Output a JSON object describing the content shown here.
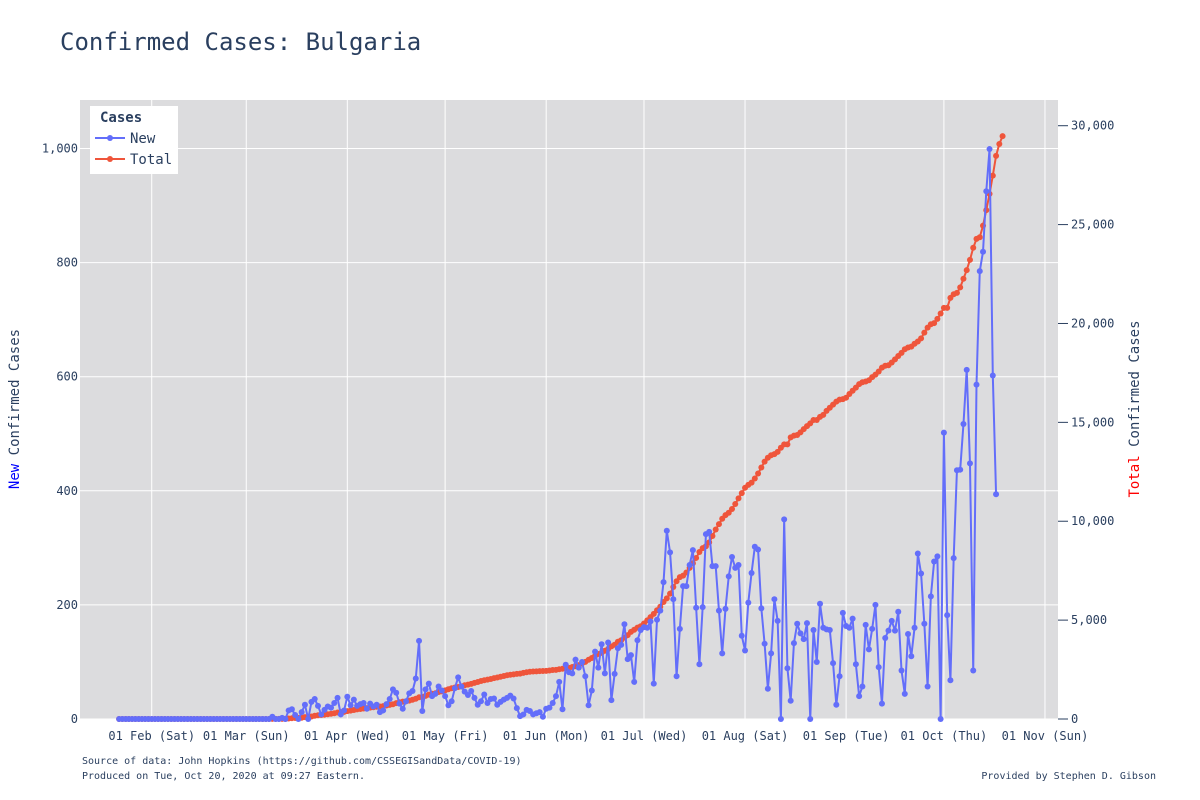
{
  "title": "Confirmed Cases: Bulgaria",
  "footer": {
    "source": "Source of data: John Hopkins (https://github.com/CSSEGISandData/COVID-19)",
    "produced": "Produced on Tue, Oct 20, 2020 at 09:27 Eastern.",
    "credit": "Provided by Stephen D. Gibson"
  },
  "colors": {
    "new": "#636efa",
    "total": "#ef553b",
    "plot_bg": "#dcdcde",
    "grid": "#ffffff",
    "text": "#2a3f5f"
  },
  "chart_data": {
    "type": "line",
    "title": "Confirmed Cases: Bulgaria",
    "legend": {
      "title": "Cases",
      "position": "top-left",
      "entries": [
        "New",
        "Total"
      ]
    },
    "x_axis": {
      "type": "date",
      "range": [
        "2020-01-10",
        "2020-11-05"
      ],
      "ticks": [
        {
          "date": "2020-02-01",
          "label": "01 Feb (Sat)"
        },
        {
          "date": "2020-03-01",
          "label": "01 Mar (Sun)"
        },
        {
          "date": "2020-04-01",
          "label": "01 Apr (Wed)"
        },
        {
          "date": "2020-05-01",
          "label": "01 May (Fri)"
        },
        {
          "date": "2020-06-01",
          "label": "01 Jun (Mon)"
        },
        {
          "date": "2020-07-01",
          "label": "01 Jul (Wed)"
        },
        {
          "date": "2020-08-01",
          "label": "01 Aug (Sat)"
        },
        {
          "date": "2020-09-01",
          "label": "01 Sep (Tue)"
        },
        {
          "date": "2020-10-01",
          "label": "01 Oct (Thu)"
        },
        {
          "date": "2020-11-01",
          "label": "01 Nov (Sun)"
        }
      ]
    },
    "y_left": {
      "label_parts": [
        "New",
        " Confirmed Cases"
      ],
      "range": [
        0,
        1085
      ],
      "ticks": [
        {
          "v": 0,
          "label": "0"
        },
        {
          "v": 200,
          "label": "200"
        },
        {
          "v": 400,
          "label": "400"
        },
        {
          "v": 600,
          "label": "600"
        },
        {
          "v": 800,
          "label": "800"
        },
        {
          "v": 1000,
          "label": "1,000"
        }
      ]
    },
    "y_right": {
      "label_parts": [
        "Total",
        " Confirmed Cases"
      ],
      "range": [
        0,
        31300
      ],
      "ticks": [
        {
          "v": 0,
          "label": "0"
        },
        {
          "v": 5000,
          "label": "5,000"
        },
        {
          "v": 10000,
          "label": "10,000"
        },
        {
          "v": 15000,
          "label": "15,000"
        },
        {
          "v": 20000,
          "label": "20,000"
        },
        {
          "v": 25000,
          "label": "25,000"
        },
        {
          "v": 30000,
          "label": "30,000"
        }
      ]
    },
    "grid": true,
    "series": [
      {
        "name": "New",
        "axis": "left",
        "start_date": "2020-01-22",
        "values": [
          0,
          0,
          0,
          0,
          0,
          0,
          0,
          0,
          0,
          0,
          0,
          0,
          0,
          0,
          0,
          0,
          0,
          0,
          0,
          0,
          0,
          0,
          0,
          0,
          0,
          0,
          0,
          0,
          0,
          0,
          0,
          0,
          0,
          0,
          0,
          0,
          0,
          0,
          0,
          0,
          0,
          0,
          0,
          0,
          0,
          0,
          0,
          4,
          0,
          0,
          2,
          0,
          15,
          17,
          7,
          0,
          12,
          25,
          0,
          30,
          35,
          23,
          8,
          16,
          22,
          20,
          28,
          37,
          8,
          15,
          39,
          24,
          34,
          23,
          26,
          28,
          18,
          27,
          22,
          25,
          12,
          15,
          26,
          35,
          52,
          46,
          27,
          18,
          31,
          45,
          49,
          71,
          137,
          14,
          52,
          62,
          40,
          44,
          57,
          50,
          40,
          24,
          31,
          54,
          73,
          57,
          48,
          42,
          49,
          37,
          25,
          31,
          43,
          28,
          35,
          36,
          25,
          30,
          34,
          37,
          41,
          36,
          19,
          5,
          8,
          16,
          14,
          8,
          10,
          12,
          4,
          18,
          20,
          28,
          40,
          65,
          17,
          95,
          82,
          80,
          104,
          90,
          100,
          75,
          24,
          50,
          118,
          90,
          131,
          80,
          134,
          33,
          79,
          124,
          130,
          166,
          105,
          112,
          65,
          138,
          156,
          161,
          160,
          171,
          62,
          174,
          190,
          240,
          330,
          292,
          210,
          75,
          158,
          233,
          233,
          270,
          296,
          195,
          96,
          196,
          324,
          328,
          268,
          268,
          190,
          115,
          193,
          250,
          284,
          265,
          270,
          146,
          120,
          204,
          256,
          302,
          297,
          194,
          132,
          53,
          115,
          210,
          172,
          0,
          350,
          89,
          32,
          133,
          167,
          150,
          140,
          168,
          0,
          156,
          100,
          202,
          160,
          157,
          156,
          98,
          25,
          75,
          186,
          163,
          160,
          176,
          96,
          40,
          57,
          165,
          122,
          158,
          200,
          91,
          27,
          142,
          155,
          172,
          155,
          188,
          85,
          44,
          149,
          110,
          160,
          290,
          255,
          167,
          57,
          215,
          276,
          285,
          0,
          502,
          182,
          68,
          282,
          436,
          437,
          517,
          612,
          448,
          85,
          586,
          785,
          819,
          925,
          999,
          602,
          394
        ]
      },
      {
        "name": "Total",
        "axis": "right",
        "start_date": "2020-01-22",
        "values": [
          0,
          0,
          0,
          0,
          0,
          0,
          0,
          0,
          0,
          0,
          0,
          0,
          0,
          0,
          0,
          0,
          0,
          0,
          0,
          0,
          0,
          0,
          0,
          0,
          0,
          0,
          0,
          0,
          0,
          0,
          0,
          0,
          0,
          0,
          0,
          0,
          0,
          0,
          0,
          0,
          0,
          0,
          0,
          0,
          0,
          0,
          0,
          4,
          4,
          4,
          6,
          6,
          23,
          41,
          51,
          52,
          62,
          92,
          94,
          127,
          163,
          187,
          201,
          218,
          242,
          264,
          293,
          331,
          346,
          359,
          399,
          422,
          457,
          485,
          503,
          531,
          549,
          577,
          593,
          618,
          635,
          653,
          685,
          713,
          747,
          800,
          846,
          878,
          894,
          929,
          975,
          1024,
          1097,
          1111,
          1172,
          1234,
          1275,
          1300,
          1363,
          1399,
          1447,
          1506,
          1555,
          1594,
          1618,
          1652,
          1704,
          1740,
          1778,
          1829,
          1872,
          1921,
          1958,
          1990,
          2023,
          2069,
          2100,
          2138,
          2175,
          2211,
          2235,
          2259,
          2280,
          2292,
          2331,
          2366,
          2388,
          2399,
          2408,
          2418,
          2427,
          2433,
          2453,
          2477,
          2485,
          2513,
          2538,
          2560,
          2585,
          2627,
          2668,
          2727,
          2810,
          2889,
          2993,
          3086,
          3191,
          3290,
          3341,
          3453,
          3542,
          3674,
          3755,
          3905,
          3984,
          4114,
          4242,
          4408,
          4512,
          4619,
          4691,
          4831,
          4989,
          5154,
          5315,
          5497,
          5677,
          5914,
          6102,
          6342,
          6672,
          6964,
          7175,
          7252,
          7411,
          7644,
          7877,
          8144,
          8442,
          8638,
          8733,
          8929,
          9254,
          9584,
          9853,
          10123,
          10312,
          10427,
          10621,
          10871,
          11155,
          11420,
          11690,
          11836,
          11955,
          12159,
          12415,
          12717,
          13014,
          13208,
          13339,
          13391,
          13507,
          13717,
          13889,
          13889,
          14238,
          14328,
          14360,
          14493,
          14660,
          14809,
          14950,
          15119,
          15119,
          15276,
          15376,
          15578,
          15738,
          15895,
          16051,
          16149,
          16173,
          16247,
          16434,
          16597,
          16757,
          16932,
          17028,
          17068,
          17126,
          17290,
          17411,
          17569,
          17769,
          17860,
          17887,
          18029,
          18184,
          18356,
          18512,
          18699,
          18784,
          18827,
          18976,
          19086,
          19246,
          19536,
          19791,
          19959,
          20016,
          20230,
          20506,
          20791,
          20791,
          21294,
          21476,
          21545,
          21827,
          22263,
          22700,
          23217,
          23829,
          24277,
          24362,
          24948,
          25733,
          26551,
          27476,
          28475,
          29077,
          29471
        ]
      }
    ]
  }
}
